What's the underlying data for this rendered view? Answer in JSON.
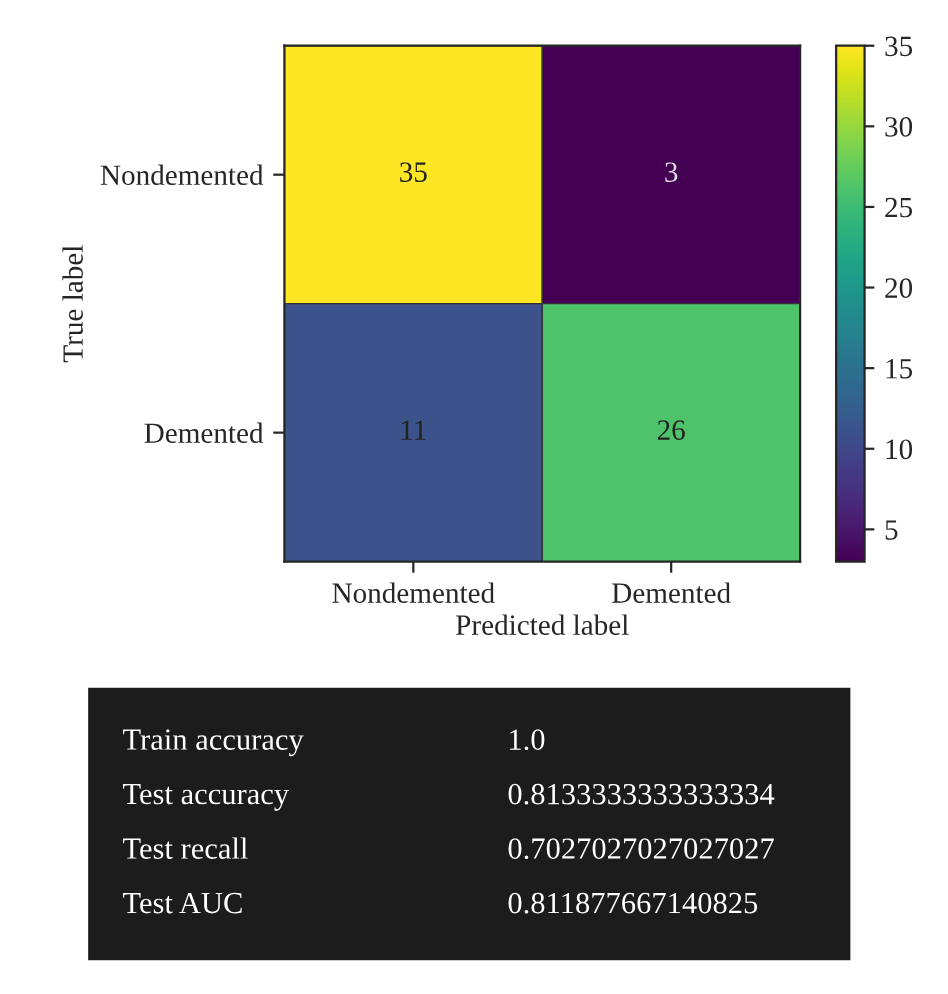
{
  "chart_data": [
    {
      "type": "heatmap",
      "xlabel": "Predicted label",
      "ylabel": "True label",
      "categories": [
        "Nondemented",
        "Demented"
      ],
      "y_categories": [
        "Nondemented",
        "Demented"
      ],
      "cells": [
        [
          35,
          3
        ],
        [
          11,
          26
        ]
      ],
      "data_labels": true,
      "clim": [
        3,
        35
      ],
      "cticks": [
        5,
        10,
        15,
        20,
        25,
        30,
        35
      ]
    },
    {
      "type": "other",
      "annotations": [
        "Train accuracy",
        "1.0",
        "Test accuracy",
        "0.8133333333333334",
        "Test recall",
        "0.7027027027027027",
        "Test AUC",
        "0.811877667140825"
      ]
    }
  ]
}
